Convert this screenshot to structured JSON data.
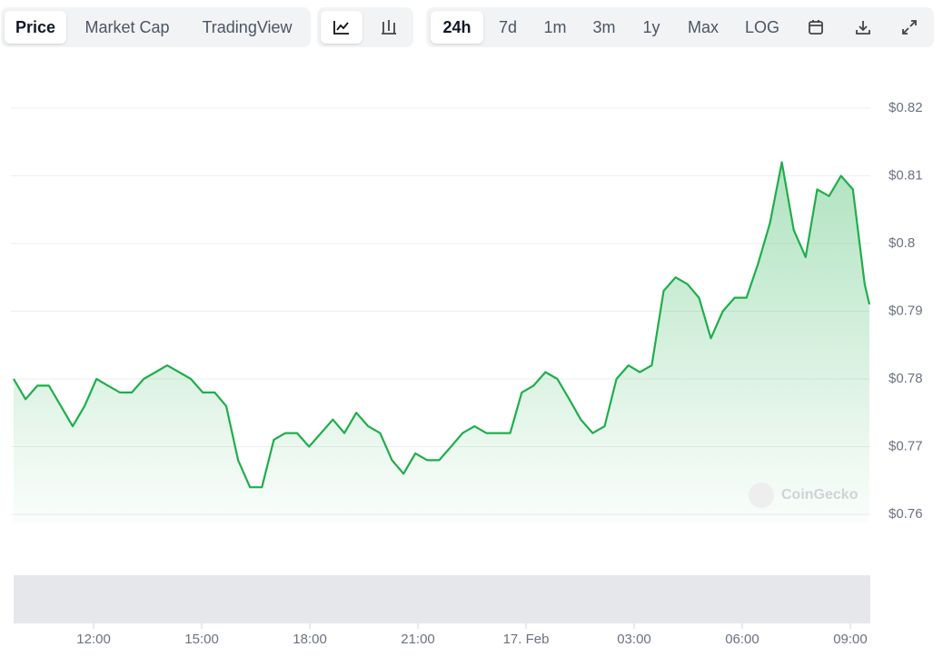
{
  "toolbar": {
    "tabs": [
      "Price",
      "Market Cap",
      "TradingView"
    ],
    "ranges": [
      "24h",
      "7d",
      "1m",
      "3m",
      "1y",
      "Max",
      "LOG"
    ]
  },
  "watermark": "CoinGecko",
  "chart_data": {
    "type": "area",
    "color": "#1fae4b",
    "x": [
      9.78,
      10.11,
      10.44,
      10.76,
      11.09,
      11.42,
      11.75,
      12.08,
      12.4,
      12.73,
      13.06,
      13.39,
      13.72,
      14.04,
      14.37,
      14.7,
      15.03,
      15.36,
      15.68,
      16.01,
      16.34,
      16.67,
      17.0,
      17.32,
      17.65,
      17.98,
      18.31,
      18.64,
      18.96,
      19.29,
      19.62,
      19.95,
      20.28,
      20.6,
      20.93,
      21.26,
      21.59,
      21.92,
      22.24,
      22.57,
      22.9,
      23.23,
      23.56,
      23.88,
      24.21,
      24.54,
      24.87,
      25.2,
      25.52,
      25.85,
      26.18,
      26.51,
      26.84,
      27.16,
      27.49,
      27.82,
      28.15,
      28.48,
      28.8,
      29.13,
      29.46,
      29.79,
      30.12,
      30.44,
      30.77,
      31.1,
      31.43,
      31.76,
      32.08,
      32.41,
      32.74,
      33.07,
      33.4,
      33.53
    ],
    "values": [
      0.78,
      0.777,
      0.779,
      0.779,
      0.776,
      0.773,
      0.776,
      0.78,
      0.779,
      0.778,
      0.778,
      0.78,
      0.781,
      0.782,
      0.781,
      0.78,
      0.778,
      0.778,
      0.776,
      0.768,
      0.764,
      0.764,
      0.771,
      0.772,
      0.772,
      0.77,
      0.772,
      0.774,
      0.772,
      0.775,
      0.773,
      0.772,
      0.768,
      0.766,
      0.769,
      0.768,
      0.768,
      0.77,
      0.772,
      0.773,
      0.772,
      0.772,
      0.772,
      0.778,
      0.779,
      0.781,
      0.78,
      0.777,
      0.774,
      0.772,
      0.773,
      0.78,
      0.782,
      0.781,
      0.782,
      0.793,
      0.795,
      0.794,
      0.792,
      0.786,
      0.79,
      0.792,
      0.792,
      0.797,
      0.803,
      0.812,
      0.802,
      0.798,
      0.808,
      0.807,
      0.81,
      0.808,
      0.794,
      0.791
    ],
    "xlim": [
      9.78,
      33.53
    ],
    "xticks": [
      {
        "value": 12,
        "label": "12:00"
      },
      {
        "value": 15,
        "label": "15:00"
      },
      {
        "value": 18,
        "label": "18:00"
      },
      {
        "value": 21,
        "label": "21:00"
      },
      {
        "value": 24,
        "label": "17. Feb"
      },
      {
        "value": 27,
        "label": "03:00"
      },
      {
        "value": 30,
        "label": "06:00"
      },
      {
        "value": 33,
        "label": "09:00"
      }
    ],
    "ylim": [
      0.76,
      0.82
    ],
    "yticks": [
      {
        "value": 0.76,
        "label": "$0.76"
      },
      {
        "value": 0.77,
        "label": "$0.77"
      },
      {
        "value": 0.78,
        "label": "$0.78"
      },
      {
        "value": 0.79,
        "label": "$0.79"
      },
      {
        "value": 0.8,
        "label": "$0.8"
      },
      {
        "value": 0.81,
        "label": "$0.81"
      },
      {
        "value": 0.82,
        "label": "$0.82"
      }
    ],
    "grid": true
  }
}
